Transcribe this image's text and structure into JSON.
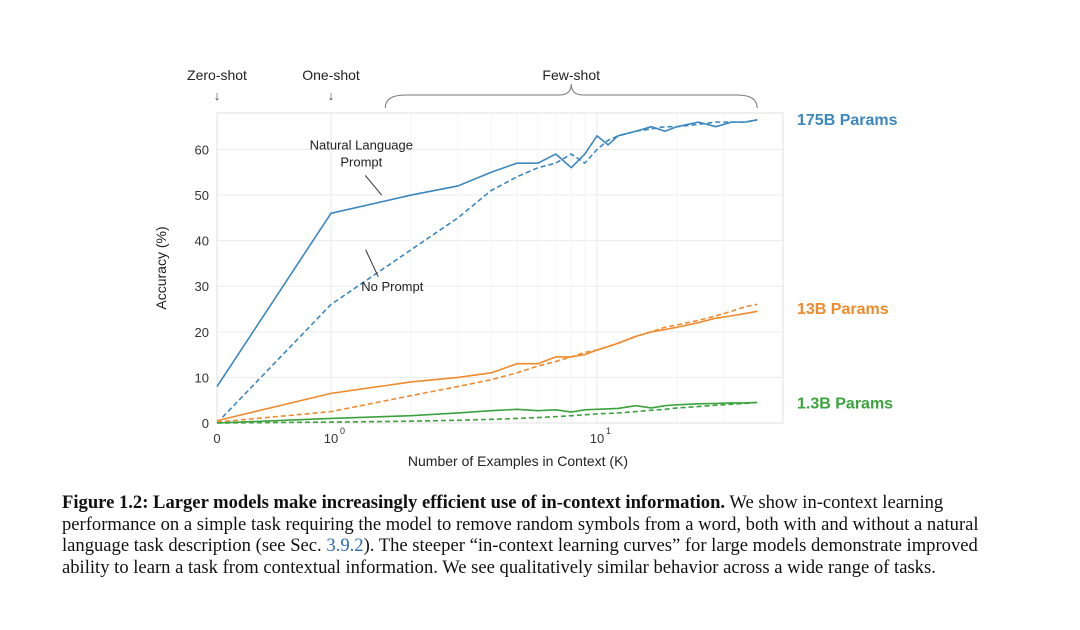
{
  "caption": {
    "lead": "Figure 1.2: Larger models make increasingly efficient use of in-context information.",
    "text_before_ref": "We show in-context learning performance on a simple task requiring the model to remove random symbols from a word, both with and without a natural language task description (see Sec.",
    "ref": "3.9.2",
    "text_after_ref": "). The steeper “in-context learning curves” for large models demonstrate improved ability to learn a task from contextual information. We see qualitatively similar behavior across a wide range of tasks."
  },
  "chart_data": {
    "type": "line",
    "xlabel": "Number of Examples in Context  (K)",
    "ylabel": "Accuracy (%)",
    "xscale": "symlog",
    "xlim": [
      0,
      40
    ],
    "ylim": [
      0,
      68
    ],
    "yticks": [
      0,
      10,
      20,
      30,
      40,
      50,
      60
    ],
    "xticks": [
      {
        "value": 0,
        "label": "0",
        "sup": ""
      },
      {
        "value": 1,
        "label": "10",
        "sup": "0"
      },
      {
        "value": 10,
        "label": "10",
        "sup": "1"
      }
    ],
    "grid": true,
    "regimes": [
      {
        "label": "Zero-shot",
        "x": 0,
        "marker": "↓"
      },
      {
        "label": "One-shot",
        "x": 1,
        "marker": "↓"
      },
      {
        "label": "Few-shot",
        "x_start": 1.6,
        "x_end": 40
      }
    ],
    "annotations": [
      {
        "text_lines": [
          "Natural Language",
          "Prompt"
        ],
        "x": 1.3,
        "y": 60,
        "arrow_to": [
          1.55,
          50
        ]
      },
      {
        "text_lines": [
          "No Prompt"
        ],
        "x": 1.7,
        "y": 29,
        "arrow_to": [
          1.35,
          38
        ]
      }
    ],
    "series": [
      {
        "name": "175B Params",
        "color": "#3b87bf",
        "prompt": "Natural Language Prompt",
        "style": "solid",
        "x": [
          0,
          1,
          2,
          3,
          4,
          5,
          6,
          7,
          8,
          9,
          10,
          11,
          12,
          14,
          16,
          18,
          20,
          24,
          28,
          32,
          36,
          40
        ],
        "y": [
          8,
          46,
          50,
          52,
          55,
          57,
          57,
          59,
          56,
          59,
          63,
          61,
          63,
          64,
          65,
          64,
          65,
          66,
          65,
          66,
          66,
          66.5
        ]
      },
      {
        "name": "175B Params",
        "color": "#3b87bf",
        "prompt": "No Prompt",
        "style": "dashed",
        "x": [
          0,
          1,
          2,
          3,
          4,
          5,
          6,
          7,
          8,
          9,
          10,
          11,
          12,
          14,
          16,
          18,
          20,
          24,
          28,
          32,
          36,
          40
        ],
        "y": [
          0,
          26,
          38,
          45,
          51,
          54,
          56,
          57,
          59,
          57,
          60,
          62,
          63,
          64,
          64.5,
          65,
          65,
          65.5,
          66,
          66,
          66,
          66.5
        ]
      },
      {
        "name": "13B Params",
        "color": "#f08a2c",
        "prompt": "Natural Language Prompt",
        "style": "solid",
        "x": [
          0,
          1,
          2,
          3,
          4,
          5,
          6,
          7,
          8,
          9,
          10,
          12,
          14,
          16,
          18,
          20,
          24,
          28,
          32,
          36,
          40
        ],
        "y": [
          0.5,
          6.5,
          9,
          10,
          11,
          13,
          13,
          14.5,
          14.5,
          15,
          16,
          17.5,
          19,
          20,
          20.5,
          21,
          22,
          23,
          23.5,
          24,
          24.5
        ]
      },
      {
        "name": "13B Params",
        "color": "#f08a2c",
        "prompt": "No Prompt",
        "style": "dashed",
        "x": [
          0,
          1,
          2,
          3,
          4,
          5,
          6,
          7,
          8,
          9,
          10,
          12,
          14,
          16,
          18,
          20,
          24,
          28,
          32,
          36,
          40
        ],
        "y": [
          0.2,
          2.5,
          6,
          8,
          9.5,
          11,
          12.5,
          13.5,
          14.5,
          15.5,
          16,
          17.5,
          19,
          20,
          21,
          21.5,
          22.5,
          23.5,
          24.5,
          25.5,
          26
        ]
      },
      {
        "name": "1.3B Params",
        "color": "#3aa33c",
        "prompt": "Natural Language Prompt",
        "style": "solid",
        "x": [
          0,
          1,
          2,
          3,
          4,
          5,
          6,
          7,
          8,
          9,
          10,
          12,
          14,
          16,
          18,
          20,
          24,
          28,
          32,
          36,
          40
        ],
        "y": [
          0,
          1,
          1.6,
          2.2,
          2.7,
          3,
          2.7,
          2.9,
          2.4,
          2.9,
          3,
          3.2,
          3.8,
          3.3,
          3.8,
          4,
          4.2,
          4.3,
          4.4,
          4.4,
          4.5
        ]
      },
      {
        "name": "1.3B Params",
        "color": "#3aa33c",
        "prompt": "No Prompt",
        "style": "dashed",
        "x": [
          0,
          1,
          2,
          3,
          4,
          5,
          6,
          7,
          8,
          9,
          10,
          12,
          14,
          16,
          18,
          20,
          24,
          28,
          32,
          36,
          40
        ],
        "y": [
          0,
          0.2,
          0.4,
          0.6,
          0.8,
          1,
          1.2,
          1.4,
          1.6,
          1.8,
          2,
          2.2,
          2.5,
          2.8,
          3,
          3.3,
          3.6,
          3.9,
          4.1,
          4.3,
          4.5
        ]
      }
    ],
    "series_labels": [
      {
        "text": "175B Params",
        "color": "#3b87bf",
        "y": 66.5
      },
      {
        "text": "13B Params",
        "color": "#f08a2c",
        "y": 25
      },
      {
        "text": "1.3B Params",
        "color": "#3aa33c",
        "y": 4.3
      }
    ]
  }
}
